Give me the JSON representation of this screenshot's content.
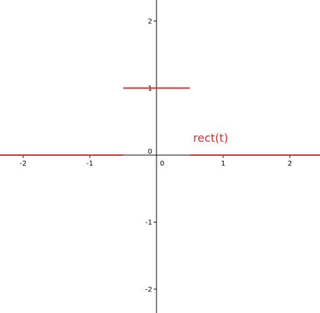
{
  "chart_data": {
    "type": "line",
    "title": "",
    "xlabel": "",
    "ylabel": "",
    "xlim": [
      -2.35,
      2.45
    ],
    "ylim": [
      -2.35,
      2.3
    ],
    "x_ticks": [
      -2,
      -1,
      0,
      1,
      2
    ],
    "y_ticks": [
      -2,
      -1,
      0,
      1,
      2
    ],
    "x_tick_labels": [
      "-2",
      "-1",
      "0",
      "1",
      "2"
    ],
    "y_tick_labels": [
      "-2",
      "-1",
      "0",
      "1",
      "2"
    ],
    "grid": false,
    "series": [
      {
        "name": "rect(t)",
        "color": "#d32f2f",
        "segments": [
          {
            "x": [
              -2.35,
              -0.5
            ],
            "y": [
              0,
              0
            ]
          },
          {
            "x": [
              -0.5,
              0.5
            ],
            "y": [
              1,
              1
            ]
          },
          {
            "x": [
              0.5,
              2.45
            ],
            "y": [
              0,
              0
            ]
          }
        ]
      }
    ],
    "annotations": [
      {
        "text": "rect(t)",
        "x": 0.55,
        "y": 0.2,
        "color": "#d32f2f"
      }
    ]
  }
}
